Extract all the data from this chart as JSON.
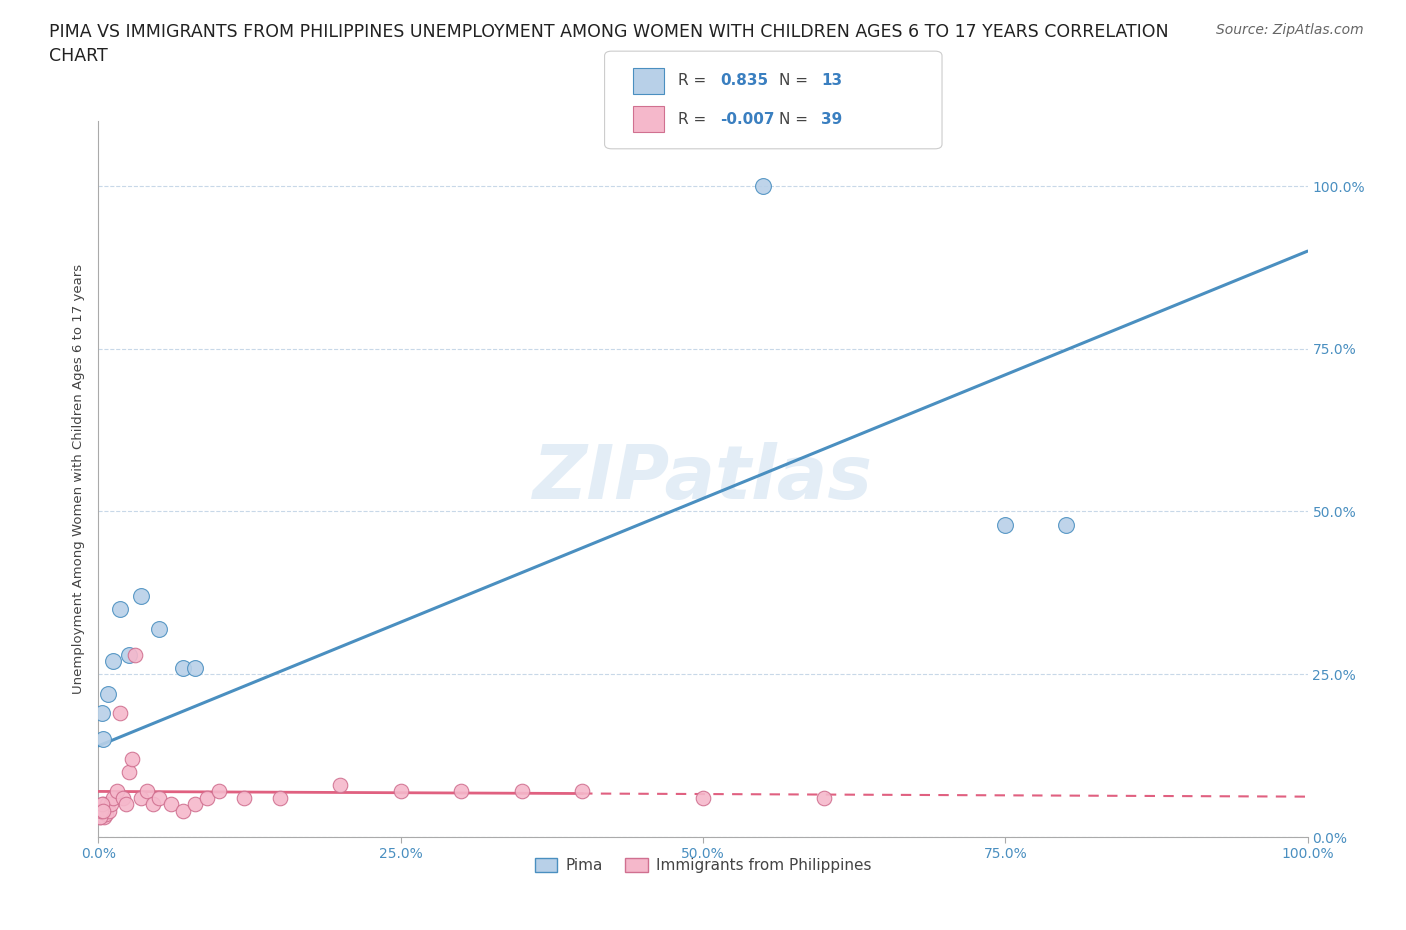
{
  "title": "PIMA VS IMMIGRANTS FROM PHILIPPINES UNEMPLOYMENT AMONG WOMEN WITH CHILDREN AGES 6 TO 17 YEARS CORRELATION\nCHART",
  "source_text": "Source: ZipAtlas.com",
  "ylabel": "Unemployment Among Women with Children Ages 6 to 17 years",
  "watermark": "ZIPatlas",
  "pima_r": 0.835,
  "pima_n": 13,
  "phil_r": -0.007,
  "phil_n": 39,
  "pima_color": "#b8d0e8",
  "phil_color": "#f5b8cb",
  "pima_line_color": "#4a8fc0",
  "phil_line_color": "#e06080",
  "pima_x": [
    0.4,
    0.8,
    1.2,
    1.8,
    2.5,
    3.5,
    5.0,
    7.0,
    8.0,
    55.0,
    75.0,
    80.0,
    0.3
  ],
  "pima_y": [
    15.0,
    22.0,
    27.0,
    35.0,
    28.0,
    37.0,
    32.0,
    26.0,
    26.0,
    100.0,
    48.0,
    48.0,
    19.0
  ],
  "phil_x": [
    0.15,
    0.25,
    0.35,
    0.45,
    0.55,
    0.65,
    0.75,
    0.9,
    1.0,
    1.2,
    1.5,
    1.8,
    2.0,
    2.3,
    2.5,
    2.8,
    3.0,
    3.5,
    4.0,
    4.5,
    5.0,
    6.0,
    7.0,
    8.0,
    9.0,
    10.0,
    12.0,
    15.0,
    20.0,
    25.0,
    30.0,
    35.0,
    40.0,
    50.0,
    60.0,
    0.1,
    0.2,
    0.3,
    0.4
  ],
  "phil_y": [
    3.0,
    4.0,
    5.0,
    3.0,
    4.0,
    3.5,
    5.0,
    4.0,
    5.0,
    6.0,
    7.0,
    19.0,
    6.0,
    5.0,
    10.0,
    12.0,
    28.0,
    6.0,
    7.0,
    5.0,
    6.0,
    5.0,
    4.0,
    5.0,
    6.0,
    7.0,
    6.0,
    6.0,
    8.0,
    7.0,
    7.0,
    7.0,
    7.0,
    6.0,
    6.0,
    3.0,
    4.0,
    5.0,
    4.0
  ],
  "pima_line_start_x": 0.0,
  "pima_line_start_y": 14.0,
  "pima_line_end_x": 100.0,
  "pima_line_end_y": 90.0,
  "phil_line_start_x": 0.0,
  "phil_line_start_y": 7.0,
  "phil_line_end_x": 100.0,
  "phil_line_end_y": 6.2,
  "phil_solid_end_x": 40.0,
  "xlim": [
    0,
    100
  ],
  "ylim": [
    0,
    110
  ],
  "yticks": [
    0,
    25,
    50,
    75,
    100
  ],
  "ytick_labels": [
    "0.0%",
    "25.0%",
    "50.0%",
    "75.0%",
    "100.0%"
  ],
  "xticks": [
    0,
    25,
    50,
    75,
    100
  ],
  "xtick_labels": [
    "0.0%",
    "25.0%",
    "50.0%",
    "75.0%",
    "100.0%"
  ],
  "legend_pima_label": "Pima",
  "legend_phil_label": "Immigrants from Philippines",
  "background_color": "#ffffff",
  "grid_color": "#c8d8e8",
  "title_fontsize": 12.5,
  "axis_label_fontsize": 9.5,
  "tick_fontsize": 10,
  "source_fontsize": 10,
  "r_value_color": "#3a7fc0",
  "tick_color": "#4a8fc0"
}
